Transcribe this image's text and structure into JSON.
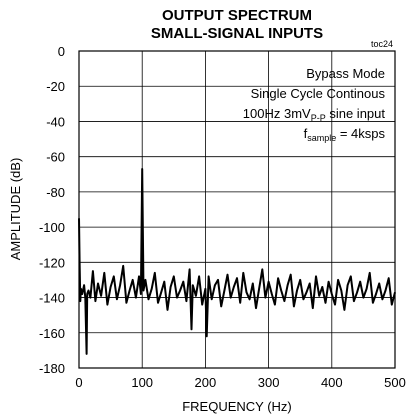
{
  "chart_data": {
    "type": "line",
    "title": "OUTPUT SPECTRUM",
    "subtitle": "SMALL-SIGNAL INPUTS",
    "figure_code": "toc24",
    "xlabel": "FREQUENCY (Hz)",
    "ylabel": "AMPLITUDE (dB)",
    "xlim": [
      0,
      500
    ],
    "ylim": [
      -180,
      0
    ],
    "x_ticks": [
      "0",
      "100",
      "200",
      "300",
      "400",
      "500"
    ],
    "y_ticks": [
      "0",
      "-20",
      "-40",
      "-60",
      "-80",
      "-100",
      "-120",
      "-140",
      "-160",
      "-180"
    ],
    "grid": true,
    "annotations": {
      "line1": "Bypass Mode",
      "line2": "Single Cycle Continous",
      "line3_pre": "100Hz 3mV",
      "line3_sub": "P-P",
      "line3_post": " sine input",
      "line4_pre": "f",
      "line4_sub": "sample",
      "line4_post": " = 4ksps"
    },
    "series": [
      {
        "x": [
          0,
          1,
          2,
          3,
          5,
          8,
          10,
          12,
          13,
          15,
          18,
          22,
          26,
          30,
          35,
          40,
          45,
          50,
          55,
          60,
          65,
          70,
          75,
          80,
          85,
          90,
          95,
          98,
          100,
          102,
          105,
          110,
          115,
          120,
          125,
          130,
          135,
          140,
          145,
          150,
          155,
          160,
          165,
          170,
          175,
          178,
          180,
          185,
          190,
          195,
          200,
          202,
          205,
          210,
          215,
          220,
          225,
          230,
          235,
          240,
          245,
          250,
          255,
          260,
          265,
          270,
          275,
          280,
          285,
          290,
          295,
          300,
          305,
          310,
          315,
          320,
          325,
          330,
          335,
          340,
          345,
          350,
          355,
          360,
          365,
          370,
          375,
          380,
          385,
          390,
          395,
          400,
          405,
          410,
          415,
          420,
          425,
          430,
          435,
          440,
          445,
          450,
          455,
          460,
          465,
          470,
          475,
          480,
          485,
          490,
          495,
          500
        ],
        "y": [
          -95,
          -120,
          -142,
          -135,
          -138,
          -133,
          -140,
          -172,
          -138,
          -136,
          -140,
          -125,
          -142,
          -132,
          -139,
          -126,
          -144,
          -134,
          -128,
          -141,
          -133,
          -122,
          -143,
          -136,
          -130,
          -140,
          -128,
          -138,
          -67,
          -136,
          -130,
          -141,
          -135,
          -126,
          -143,
          -137,
          -131,
          -147,
          -134,
          -128,
          -140,
          -136,
          -131,
          -142,
          -124,
          -158,
          -133,
          -139,
          -128,
          -144,
          -135,
          -162,
          -128,
          -141,
          -133,
          -130,
          -145,
          -136,
          -127,
          -140,
          -134,
          -129,
          -143,
          -126,
          -137,
          -141,
          -132,
          -146,
          -135,
          -124,
          -140,
          -131,
          -138,
          -144,
          -129,
          -136,
          -142,
          -133,
          -127,
          -145,
          -136,
          -130,
          -141,
          -137,
          -132,
          -146,
          -128,
          -139,
          -134,
          -143,
          -131,
          -138,
          -144,
          -130,
          -136,
          -147,
          -133,
          -128,
          -142,
          -137,
          -131,
          -140,
          -135,
          -126,
          -143,
          -138,
          -132,
          -141,
          -136,
          -129,
          -144,
          -137
        ]
      }
    ]
  }
}
